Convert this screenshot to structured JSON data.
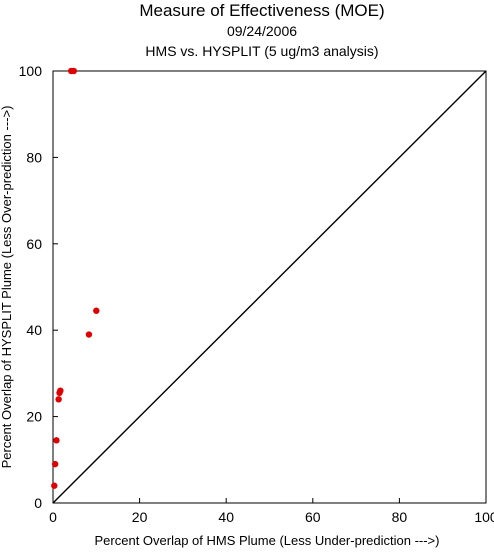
{
  "chart_data": {
    "type": "scatter",
    "title": "Measure of Effectiveness (MOE)",
    "subtitle_date": "09/24/2006",
    "subtitle_analysis": "HMS vs. HYSPLIT  (5 ug/m3 analysis)",
    "xlabel": "Percent Overlap of HMS Plume (Less Under-prediction --->)",
    "ylabel": "Percent Overlap of HYSPLIT Plume (Less Over-prediction --->)",
    "xlim": [
      0,
      100
    ],
    "ylim": [
      0,
      100
    ],
    "xticks": [
      "0",
      "20",
      "40",
      "60",
      "80",
      "100"
    ],
    "yticks": [
      "0",
      "20",
      "40",
      "60",
      "80",
      "100"
    ],
    "grid": false,
    "reference_line": "y = x",
    "point_color": "#e00000",
    "series": [
      {
        "x": [
          4.2,
          4.8,
          10.0,
          8.3,
          1.5,
          1.7,
          1.3,
          0.8,
          0.5,
          0.3
        ],
        "y": [
          100,
          100,
          44.5,
          39,
          25.5,
          26,
          24,
          14.5,
          9,
          4
        ]
      }
    ]
  }
}
